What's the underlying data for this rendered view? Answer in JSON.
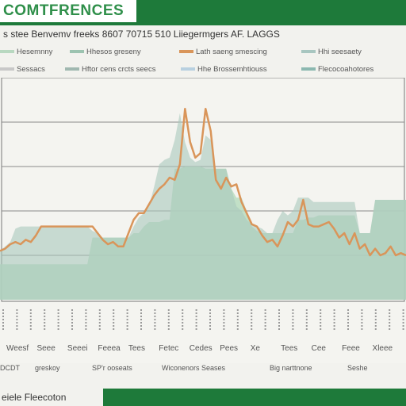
{
  "header": {
    "title": "COMTFRENCES",
    "subtitle": "s stee Benvemv freeks 8607 70715 510 Liiegermgers AF. LAGGS",
    "footer": "eiele Fleecoton"
  },
  "legend_top": [
    {
      "label": "Hesemnny",
      "color": "#b8d8c0"
    },
    {
      "label": "Hhesos greseny",
      "color": "#9cc3b0"
    },
    {
      "label": "Lath saeng smescing",
      "color": "#d9955a"
    },
    {
      "label": "Hhi seesaety",
      "color": "#a8c6c0"
    }
  ],
  "legend_mid": [
    {
      "label": "Sessacs",
      "color": "#c8c8c8"
    },
    {
      "label": "Hftor cens crcts seecs",
      "color": "#a0b8b0"
    },
    {
      "label": "Hhe Brossemhtiouss",
      "color": "#b8d0e0"
    },
    {
      "label": "Flecocoahotores",
      "color": "#8cb8b0"
    }
  ],
  "legend_bottom": [
    {
      "label": "DCDT",
      "color": "#c0d8c8"
    },
    {
      "label": "greskoy",
      "color": "#9cc3b0"
    },
    {
      "label": "SP'r ooseats",
      "color": "#d9955a"
    },
    {
      "label": "Wiconenors Seases",
      "color": "#a8c6c0"
    },
    {
      "label": "Big narttnone",
      "color": "#9cc3b0"
    },
    {
      "label": "Seshe",
      "color": "#c8c8c8"
    }
  ],
  "chart_data": {
    "type": "area",
    "title": "COMTFRENCES",
    "x": [
      0,
      1,
      2,
      3,
      4,
      5,
      6,
      7,
      8,
      9,
      10,
      11,
      12,
      13,
      14,
      15,
      16,
      17,
      18,
      19,
      20,
      21,
      22,
      23,
      24,
      25,
      26,
      27,
      28,
      29,
      30,
      31,
      32,
      33,
      34,
      35,
      36,
      37,
      38,
      39,
      40,
      41,
      42,
      43,
      44,
      45,
      46,
      47,
      48,
      49,
      50,
      51,
      52,
      53,
      54,
      55,
      56,
      57,
      58,
      59,
      60,
      61,
      62,
      63,
      64,
      65,
      66,
      67,
      68,
      69,
      70,
      71,
      72,
      73,
      74,
      75,
      76,
      77,
      78,
      79
    ],
    "x_tick_labels": [
      "Weesf",
      "Seee",
      "Seeei",
      "Feeea",
      "Tees",
      "Fetec",
      "Cedes",
      "Pees",
      "Xe",
      "Tees",
      "Cee",
      "Feee",
      "Xleee"
    ],
    "series": [
      {
        "type": "area",
        "color": "#b8dcc0",
        "values": [
          1.6,
          1.6,
          1.6,
          1.6,
          1.6,
          1.6,
          1.6,
          1.6,
          1.6,
          1.6,
          1.6,
          1.6,
          1.6,
          1.6,
          1.6,
          1.6,
          1.6,
          1.6,
          2.8,
          2.8,
          2.8,
          2.8,
          2.8,
          2.8,
          2.8,
          2.8,
          3.0,
          3.0,
          3.3,
          3.5,
          3.5,
          3.5,
          3.6,
          3.6,
          5.9,
          5.9,
          6.0,
          6.0,
          6.0,
          6.0,
          5.9,
          5.9,
          5.9,
          5.9,
          5.9,
          5.0,
          4.6,
          4.6,
          4.0,
          3.3,
          3.1,
          3.0,
          3.0,
          3.0,
          3.0,
          3.0,
          3.0,
          3.0,
          3.6,
          3.6,
          3.7,
          3.7,
          3.8,
          3.8,
          3.8,
          3.8,
          3.8,
          3.8,
          3.8,
          3.8,
          3.0,
          3.0,
          3.0,
          4.5,
          4.5,
          4.5,
          4.5,
          4.5,
          4.5,
          4.5
        ]
      },
      {
        "type": "area",
        "color": "#a9c8bc",
        "values": [
          2.2,
          2.4,
          2.6,
          3.2,
          3.3,
          3.3,
          3.3,
          3.3,
          3.3,
          3.3,
          3.3,
          3.3,
          3.3,
          3.3,
          3.3,
          3.3,
          3.3,
          3.3,
          3.1,
          3.0,
          2.8,
          2.8,
          2.8,
          2.8,
          2.8,
          2.8,
          3.3,
          3.7,
          3.9,
          4.2,
          5.1,
          6.1,
          6.3,
          6.4,
          7.2,
          8.4,
          7.1,
          6.4,
          6.2,
          6.3,
          7.4,
          7.2,
          5.9,
          5.9,
          5.9,
          5.0,
          4.2,
          4.0,
          3.6,
          3.4,
          3.3,
          3.2,
          3.0,
          3.0,
          3.6,
          4.0,
          3.8,
          4.0,
          4.6,
          4.6,
          4.6,
          4.4,
          4.4,
          4.4,
          4.4,
          4.4,
          4.4,
          4.4,
          4.4,
          4.4,
          3.0,
          3.0,
          3.0,
          4.5,
          4.5,
          4.5,
          4.5,
          4.5,
          4.5,
          4.5
        ]
      },
      {
        "type": "line",
        "color": "#d9955a",
        "values": [
          2.2,
          2.3,
          2.5,
          2.6,
          2.5,
          2.7,
          2.6,
          2.9,
          3.3,
          3.3,
          3.3,
          3.3,
          3.3,
          3.3,
          3.3,
          3.3,
          3.3,
          3.3,
          3.3,
          3.0,
          2.7,
          2.5,
          2.6,
          2.4,
          2.4,
          3.0,
          3.6,
          3.9,
          3.9,
          4.3,
          4.7,
          5.0,
          5.2,
          5.5,
          5.4,
          6.1,
          8.6,
          7.1,
          6.4,
          6.6,
          8.6,
          7.6,
          5.4,
          5.0,
          5.5,
          5.1,
          5.2,
          4.4,
          3.9,
          3.4,
          3.3,
          2.9,
          2.6,
          2.7,
          2.4,
          2.9,
          3.5,
          3.3,
          3.6,
          4.5,
          3.4,
          3.3,
          3.3,
          3.4,
          3.5,
          3.2,
          2.8,
          3.0,
          2.5,
          3.0,
          2.3,
          2.5,
          2.0,
          2.3,
          2.0,
          2.1,
          2.4,
          2.0,
          2.1,
          2.0
        ]
      }
    ],
    "ylim": [
      0,
      10
    ],
    "grid": true
  }
}
